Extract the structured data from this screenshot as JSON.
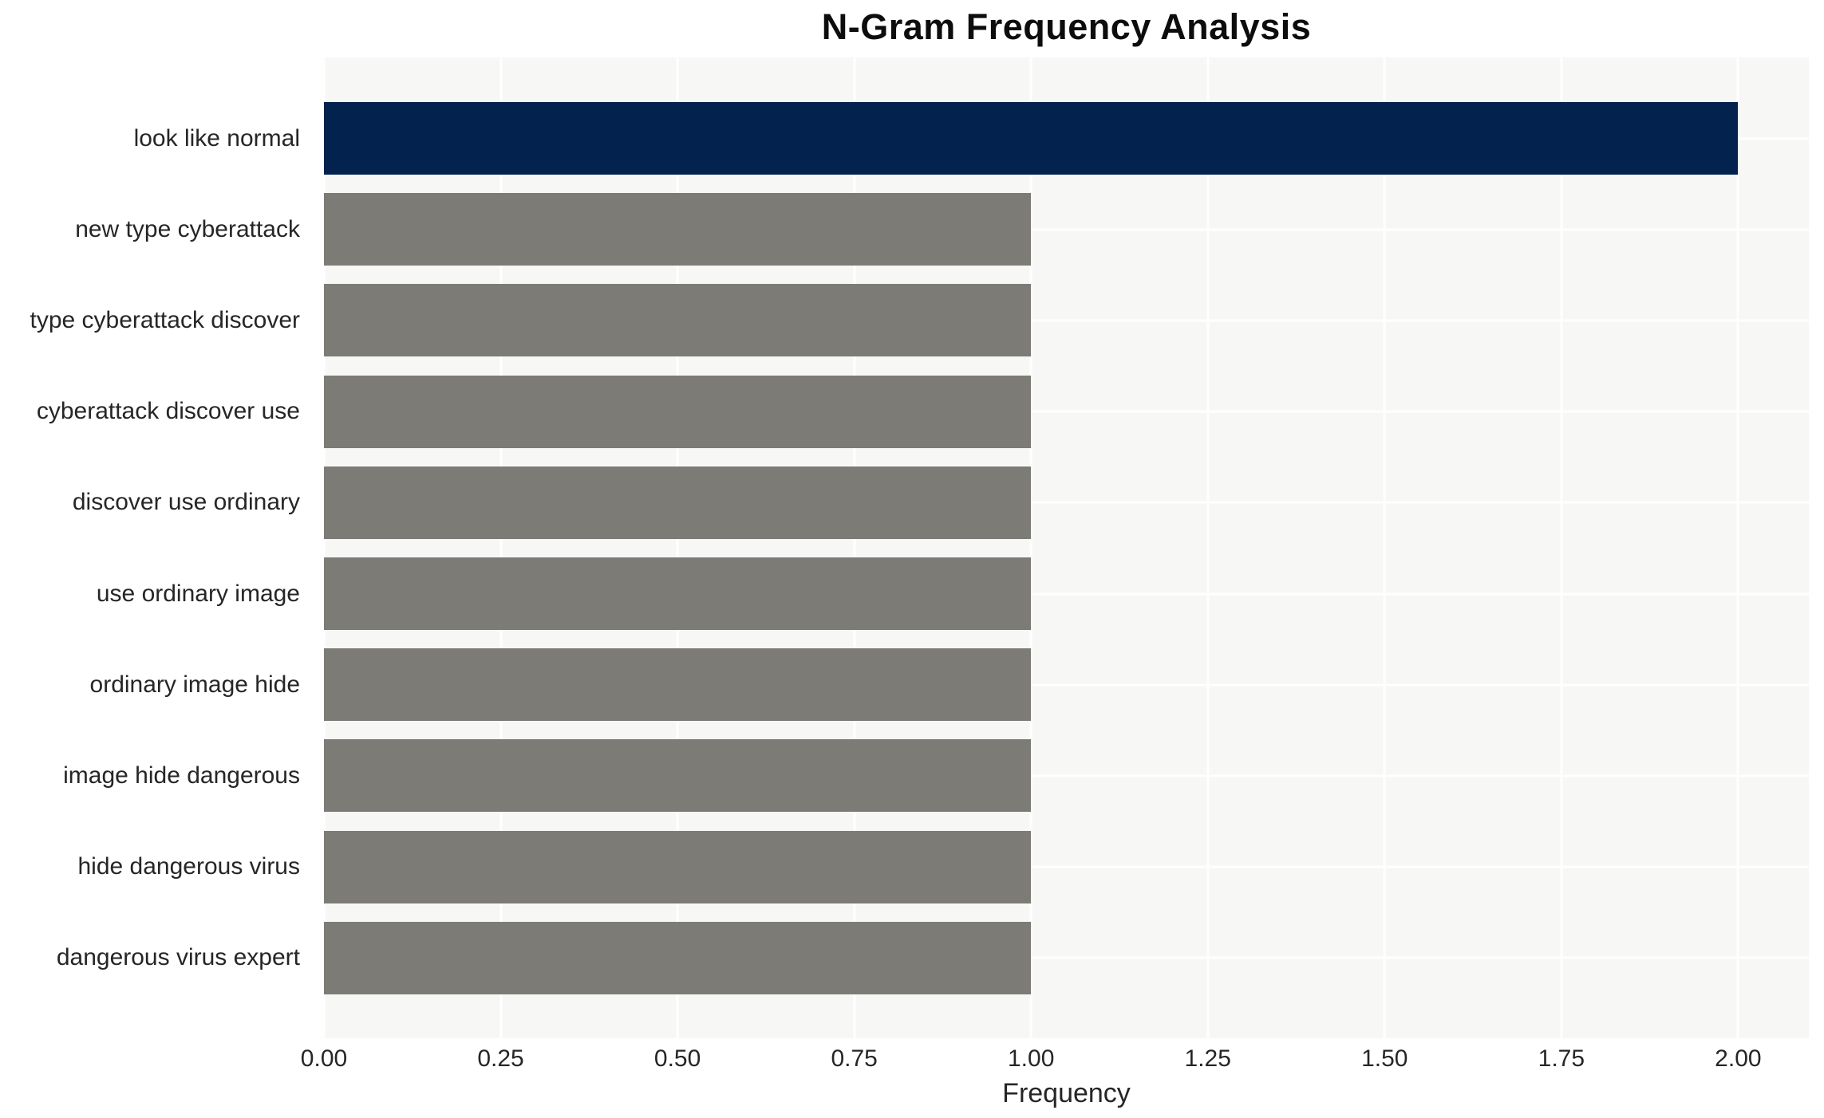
{
  "chart_data": {
    "type": "bar",
    "orientation": "horizontal",
    "title": "N-Gram Frequency Analysis",
    "xlabel": "Frequency",
    "ylabel": "",
    "categories": [
      "look like normal",
      "new type cyberattack",
      "type cyberattack discover",
      "cyberattack discover use",
      "discover use ordinary",
      "use ordinary image",
      "ordinary image hide",
      "image hide dangerous",
      "hide dangerous virus",
      "dangerous virus expert"
    ],
    "values": [
      2.0,
      1.0,
      1.0,
      1.0,
      1.0,
      1.0,
      1.0,
      1.0,
      1.0,
      1.0
    ],
    "bar_colors": [
      "#03224e",
      "#7c7b76",
      "#7c7b76",
      "#7c7b76",
      "#7c7b76",
      "#7c7b76",
      "#7c7b76",
      "#7c7b76",
      "#7c7b76",
      "#7c7b76"
    ],
    "xticks": {
      "values": [
        0.0,
        0.25,
        0.5,
        0.75,
        1.0,
        1.25,
        1.5,
        1.75,
        2.0
      ],
      "labels": [
        "0.00",
        "0.25",
        "0.50",
        "0.75",
        "1.00",
        "1.25",
        "1.50",
        "1.75",
        "2.00"
      ]
    },
    "xlim": [
      0,
      2.1
    ],
    "grid": true,
    "legend": false,
    "colors": {
      "plot_background": "#f7f7f6",
      "figure_background": "#ffffff",
      "gridline": "#ffffff",
      "highlight_bar": "#03224e",
      "default_bar": "#7c7b76",
      "text": "#262626",
      "title_text": "#0d0d0d"
    }
  }
}
